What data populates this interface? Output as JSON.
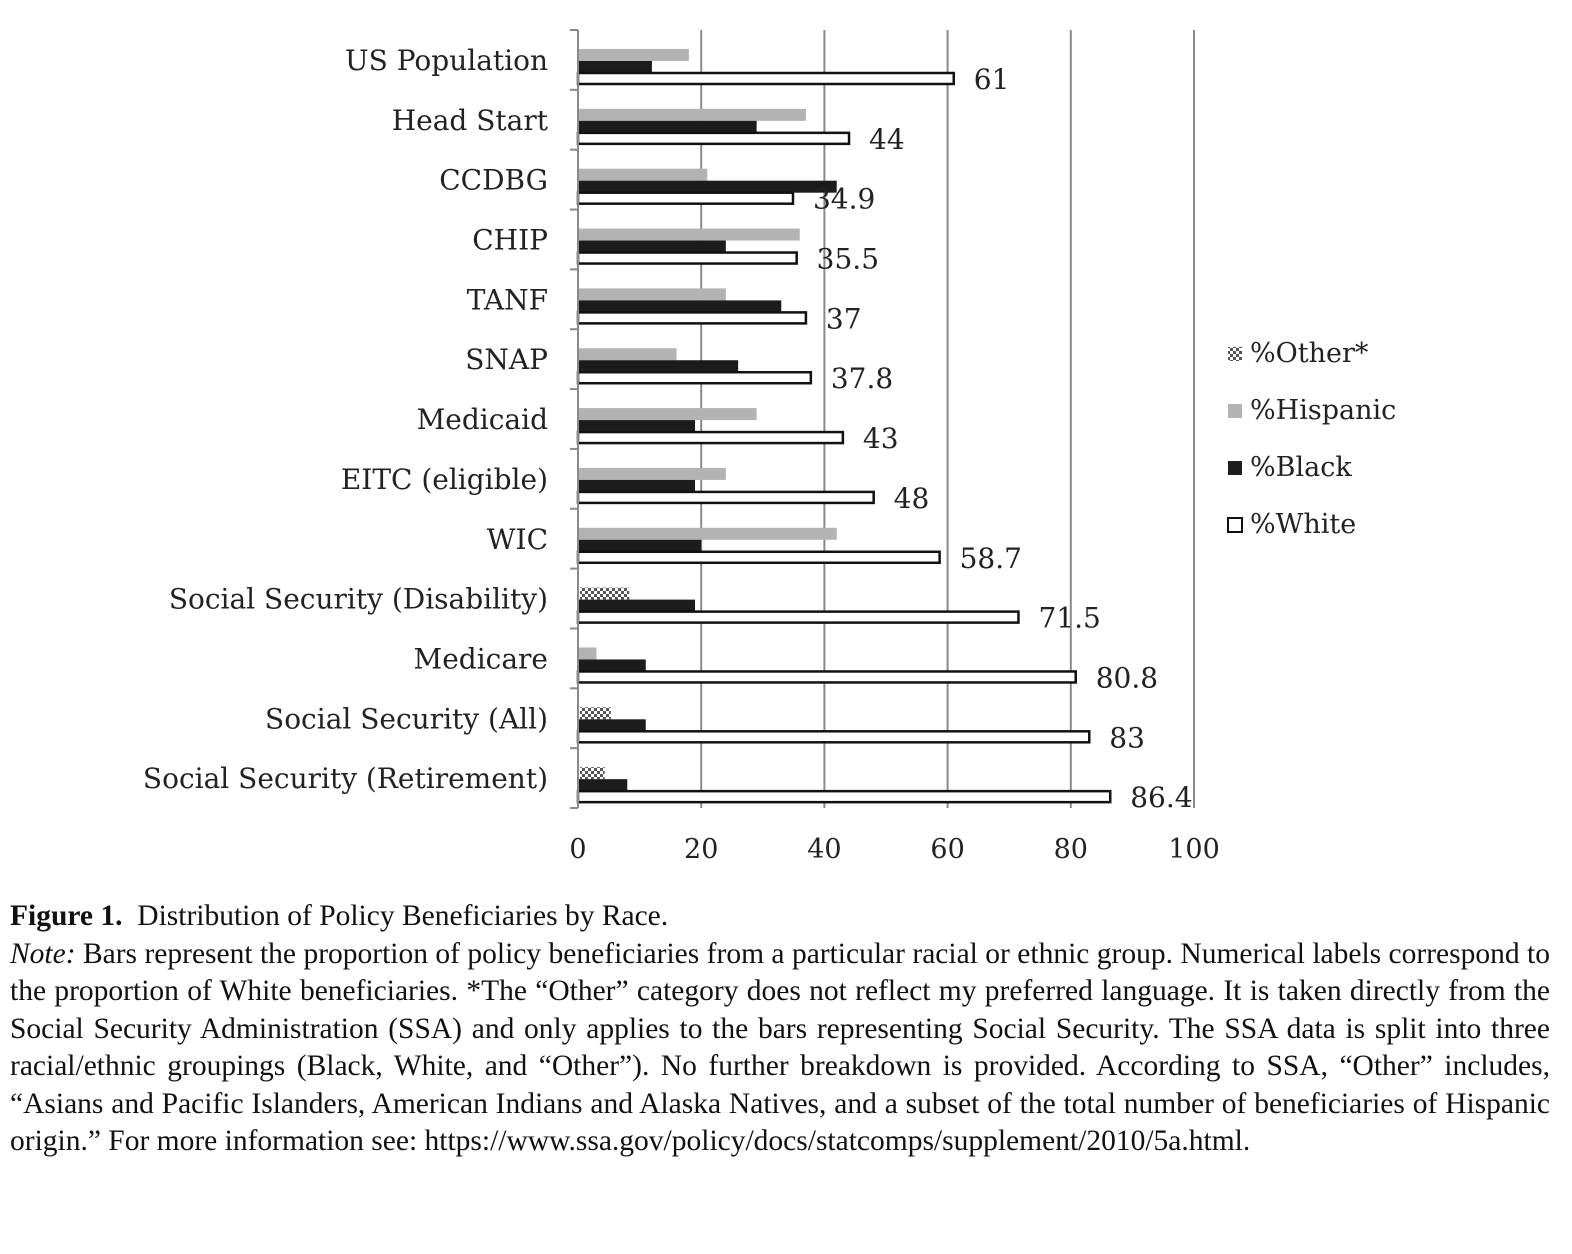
{
  "chart_data": {
    "type": "bar",
    "orientation": "horizontal",
    "categories": [
      "US Population",
      "Head Start",
      "CCDBG",
      "CHIP",
      "TANF",
      "SNAP",
      "Medicaid",
      "EITC (eligible)",
      "WIC",
      "Social Security (Disability)",
      "Medicare",
      "Social Security (All)",
      "Social Security (Retirement)"
    ],
    "series": [
      {
        "name": "%Other*",
        "key": "other",
        "color": "#ffffff",
        "values": [
          null,
          null,
          null,
          null,
          null,
          null,
          null,
          null,
          null,
          8,
          null,
          5,
          4
        ]
      },
      {
        "name": "%Hispanic",
        "key": "hispanic",
        "color": "#b3b3b3",
        "values": [
          18,
          37,
          21,
          36,
          24,
          16,
          29,
          24,
          42,
          null,
          3,
          null,
          null
        ]
      },
      {
        "name": "%Black",
        "key": "black",
        "color": "#1c1c1c",
        "values": [
          12,
          29,
          42,
          24,
          33,
          26,
          19,
          19,
          20,
          19,
          11,
          11,
          8
        ]
      },
      {
        "name": "%White",
        "key": "white",
        "color": "#ffffff",
        "values": [
          61,
          44,
          34.9,
          35.5,
          37,
          37.8,
          43,
          48,
          58.7,
          71.5,
          80.8,
          83,
          86.4
        ]
      }
    ],
    "data_labels": [
      "61",
      "44",
      "34.9",
      "35.5",
      "37",
      "37.8",
      "43",
      "48",
      "58.7",
      "71.5",
      "80.8",
      "83",
      "86.4"
    ],
    "x_ticks": [
      "0",
      "20",
      "40",
      "60",
      "80",
      "100"
    ],
    "xlim": [
      0,
      100
    ],
    "grid": true,
    "legend_position": "right"
  },
  "caption": {
    "figure_label": "Figure 1.",
    "figure_title": "Distribution of Policy Beneficiaries by Race.",
    "note_label": "Note:",
    "note_text": "Bars represent the proportion of policy beneficiaries from a particular racial or ethnic group. Numerical labels correspond to the proportion of White beneficiaries. *The “Other” category does not reflect my preferred language. It is taken directly from the Social Security Administration (SSA) and only applies to the bars representing Social Security. The SSA data is split into three racial/ethnic groupings (Black, White, and “Other”). No further breakdown is provided. According to SSA, “Other” includes, “Asians and Pacific Islanders, American Indians and Alaska Natives, and a subset of the total number of beneficiaries of Hispanic origin.” For more information see: https://www.ssa.gov/policy/docs/statcomps/supplement/2010/5a.html."
  }
}
